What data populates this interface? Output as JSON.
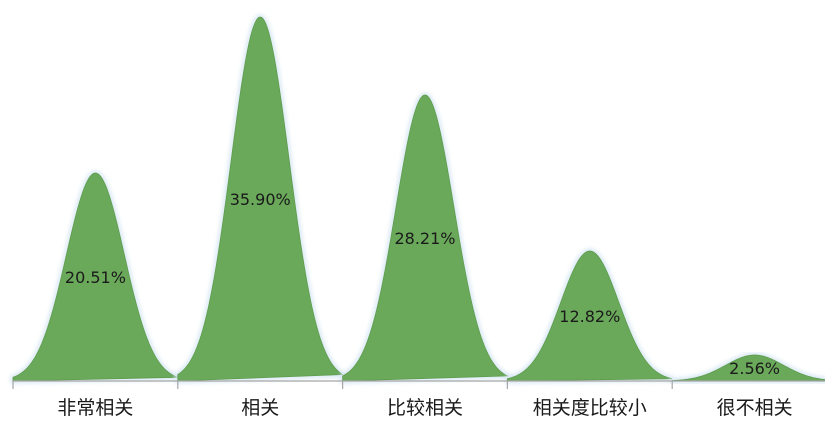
{
  "chart_data": {
    "type": "area",
    "categories": [
      "非常相关",
      "相关",
      "比较相关",
      "相关度比较小",
      "很不相关"
    ],
    "values": [
      20.51,
      35.9,
      28.21,
      12.82,
      2.56
    ],
    "data_labels": [
      "20.51%",
      "35.90%",
      "28.21%",
      "12.82%",
      "2.56%"
    ],
    "unit": "%",
    "ylim": [
      0,
      36
    ],
    "grid": false,
    "legend": "none",
    "colors": {
      "fill": "#6aa85a",
      "halo": "#d7e7f3",
      "axis": "#a6a6a6"
    }
  }
}
